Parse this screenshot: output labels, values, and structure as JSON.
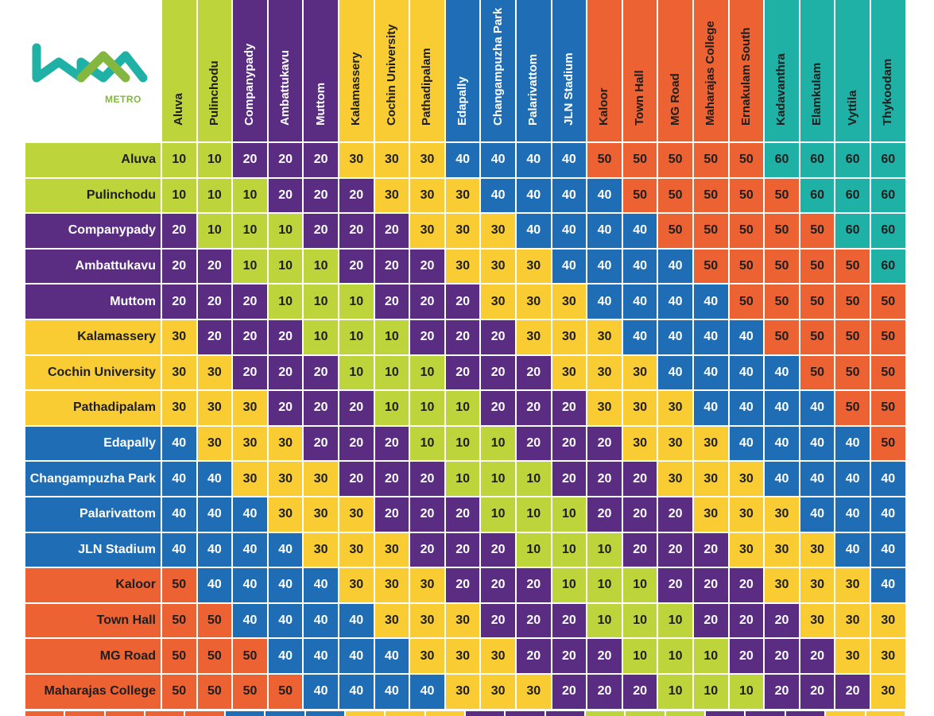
{
  "logo": {
    "text": "METRO",
    "colors": {
      "teal": "#1fb1a6",
      "green": "#84b740"
    }
  },
  "colors": {
    "green": "#bed43b",
    "purple": "#5a2d82",
    "yellow": "#f8cc32",
    "blue": "#1f6eb5",
    "orange": "#ec6233",
    "teal": "#1fb1a6"
  },
  "stations": [
    {
      "name": "Aluva",
      "group": "g"
    },
    {
      "name": "Pulinchodu",
      "group": "g"
    },
    {
      "name": "Companypady",
      "group": "p"
    },
    {
      "name": "Ambattukavu",
      "group": "p"
    },
    {
      "name": "Muttom",
      "group": "p"
    },
    {
      "name": "Kalamassery",
      "group": "y"
    },
    {
      "name": "Cochin University",
      "group": "y"
    },
    {
      "name": "Pathadipalam",
      "group": "y"
    },
    {
      "name": "Edapally",
      "group": "b"
    },
    {
      "name": "Changampuzha Park",
      "group": "b"
    },
    {
      "name": "Palarivattom",
      "group": "b"
    },
    {
      "name": "JLN Stadium",
      "group": "b"
    },
    {
      "name": "Kaloor",
      "group": "o"
    },
    {
      "name": "Town Hall",
      "group": "o"
    },
    {
      "name": "MG Road",
      "group": "o"
    },
    {
      "name": "Maharajas College",
      "group": "o"
    },
    {
      "name": "Ernakulam South",
      "group": "o"
    },
    {
      "name": "Kadavanthra",
      "group": "t"
    },
    {
      "name": "Elamkulam",
      "group": "t"
    },
    {
      "name": "Vyttila",
      "group": "t"
    },
    {
      "name": "Thykoodam",
      "group": "t"
    }
  ],
  "rows": [
    {
      "label": "Aluva",
      "group": "g",
      "fares": [
        10,
        10,
        20,
        20,
        20,
        30,
        30,
        30,
        40,
        40,
        40,
        40,
        50,
        50,
        50,
        50,
        50,
        60,
        60,
        60,
        60
      ]
    },
    {
      "label": "Pulinchodu",
      "group": "g",
      "fares": [
        10,
        10,
        10,
        20,
        20,
        20,
        30,
        30,
        30,
        40,
        40,
        40,
        40,
        50,
        50,
        50,
        50,
        50,
        60,
        60,
        60
      ]
    },
    {
      "label": "Companypady",
      "group": "p",
      "fares": [
        20,
        10,
        10,
        10,
        20,
        20,
        20,
        30,
        30,
        30,
        40,
        40,
        40,
        40,
        50,
        50,
        50,
        50,
        50,
        60,
        60
      ]
    },
    {
      "label": "Ambattukavu",
      "group": "p",
      "fares": [
        20,
        20,
        10,
        10,
        10,
        20,
        20,
        20,
        30,
        30,
        30,
        40,
        40,
        40,
        40,
        50,
        50,
        50,
        50,
        50,
        60
      ]
    },
    {
      "label": "Muttom",
      "group": "p",
      "fares": [
        20,
        20,
        20,
        10,
        10,
        10,
        20,
        20,
        20,
        30,
        30,
        30,
        40,
        40,
        40,
        40,
        50,
        50,
        50,
        50,
        50
      ]
    },
    {
      "label": "Kalamassery",
      "group": "y",
      "fares": [
        30,
        20,
        20,
        20,
        10,
        10,
        10,
        20,
        20,
        20,
        30,
        30,
        30,
        40,
        40,
        40,
        40,
        50,
        50,
        50,
        50
      ]
    },
    {
      "label": "Cochin University",
      "group": "y",
      "fares": [
        30,
        30,
        20,
        20,
        20,
        10,
        10,
        10,
        20,
        20,
        20,
        30,
        30,
        30,
        40,
        40,
        40,
        40,
        50,
        50,
        50
      ]
    },
    {
      "label": "Pathadipalam",
      "group": "y",
      "fares": [
        30,
        30,
        30,
        20,
        20,
        20,
        10,
        10,
        10,
        20,
        20,
        20,
        30,
        30,
        30,
        40,
        40,
        40,
        40,
        50,
        50
      ]
    },
    {
      "label": "Edapally",
      "group": "b",
      "fares": [
        40,
        30,
        30,
        30,
        20,
        20,
        20,
        10,
        10,
        10,
        20,
        20,
        20,
        30,
        30,
        30,
        40,
        40,
        40,
        40,
        50
      ]
    },
    {
      "label": "Changampuzha Park",
      "group": "b",
      "fares": [
        40,
        40,
        30,
        30,
        30,
        20,
        20,
        20,
        10,
        10,
        10,
        20,
        20,
        20,
        30,
        30,
        30,
        40,
        40,
        40,
        40
      ]
    },
    {
      "label": "Palarivattom",
      "group": "b",
      "fares": [
        40,
        40,
        40,
        30,
        30,
        30,
        20,
        20,
        20,
        10,
        10,
        10,
        20,
        20,
        20,
        30,
        30,
        30,
        40,
        40,
        40
      ]
    },
    {
      "label": "JLN Stadium",
      "group": "b",
      "fares": [
        40,
        40,
        40,
        40,
        30,
        30,
        30,
        20,
        20,
        20,
        10,
        10,
        10,
        20,
        20,
        20,
        30,
        30,
        30,
        40,
        40
      ]
    },
    {
      "label": "Kaloor",
      "group": "o",
      "fares": [
        50,
        40,
        40,
        40,
        40,
        30,
        30,
        30,
        20,
        20,
        20,
        10,
        10,
        10,
        20,
        20,
        20,
        30,
        30,
        30,
        40
      ]
    },
    {
      "label": "Town Hall",
      "group": "o",
      "fares": [
        50,
        50,
        40,
        40,
        40,
        40,
        30,
        30,
        30,
        20,
        20,
        20,
        10,
        10,
        10,
        20,
        20,
        20,
        30,
        30,
        30
      ]
    },
    {
      "label": "MG Road",
      "group": "o",
      "fares": [
        50,
        50,
        50,
        40,
        40,
        40,
        40,
        30,
        30,
        30,
        20,
        20,
        20,
        10,
        10,
        10,
        20,
        20,
        20,
        30,
        30
      ]
    },
    {
      "label": "Maharajas College",
      "group": "o",
      "fares": [
        50,
        50,
        50,
        50,
        40,
        40,
        40,
        40,
        30,
        30,
        30,
        20,
        20,
        20,
        10,
        10,
        10,
        20,
        20,
        20,
        30
      ]
    }
  ]
}
